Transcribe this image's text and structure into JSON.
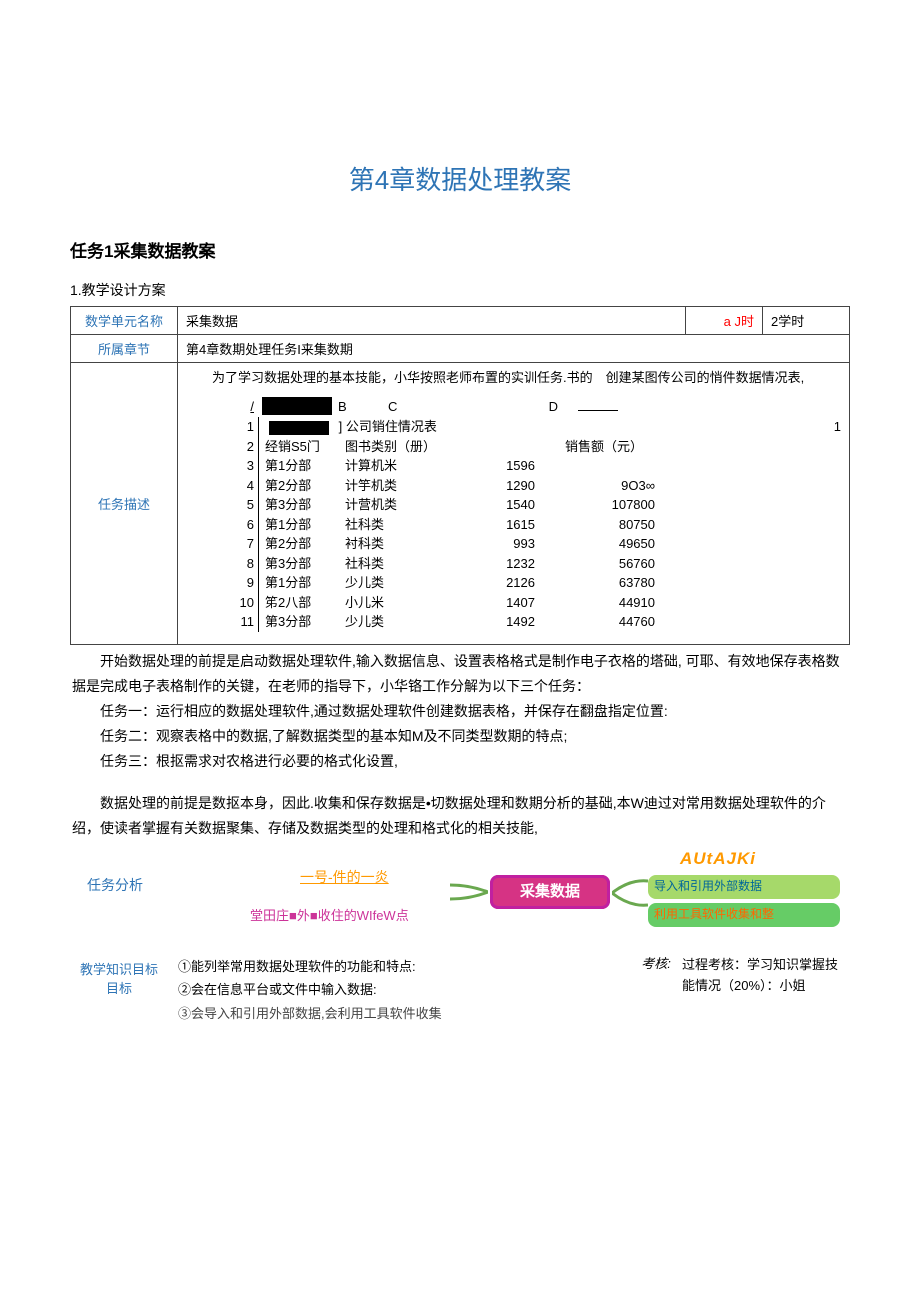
{
  "title": "第4章数据处理教案",
  "subtitle": "任务1采集数据教案",
  "section1_label": "1.教学设计方案",
  "row1": {
    "label": "数学单元名称",
    "value": "采集数据",
    "time_label": "a J时",
    "time_value": "2学时"
  },
  "row2": {
    "label": "所属章节",
    "value": "第4章数期处理任务I来集数期"
  },
  "task_desc_label": "任务描述",
  "desc_intro": "为了学习数据处理的基本技能，小华按照老师布置的实训任务.书的　创建某图传公司的悄件数据情况表,",
  "inner": {
    "col_letters": [
      "B",
      "C",
      "D"
    ],
    "slash": "/",
    "one": "1",
    "one_r": "1",
    "title_row": "] 公司销住情况表",
    "hdr_a": "经销S5门",
    "hdr_b": "图书类别（册）",
    "hdr_d": "销售额（元）",
    "rows": [
      {
        "n": "3",
        "a": "第1分部",
        "b": "计算机米",
        "c": "1596",
        "d": ""
      },
      {
        "n": "4",
        "a": "第2分部",
        "b": "计竽机类",
        "c": "1290",
        "d": "9O3∞"
      },
      {
        "n": "5",
        "a": "第3分部",
        "b": "计营机类",
        "c": "1540",
        "d": "107800"
      },
      {
        "n": "6",
        "a": "第1分部",
        "b": "社科类",
        "c": "1615",
        "d": "80750"
      },
      {
        "n": "7",
        "a": "第2分部",
        "b": "衬科类",
        "c": "993",
        "d": "49650"
      },
      {
        "n": "8",
        "a": "第3分部",
        "b": "社科类",
        "c": "1232",
        "d": "56760"
      },
      {
        "n": "9",
        "a": "第1分部",
        "b": "少儿类",
        "c": "2126",
        "d": "63780"
      },
      {
        "n": "10",
        "a": "笫2八部",
        "b": "小儿米",
        "c": "1407",
        "d": "44910"
      },
      {
        "n": "11",
        "a": "第3分部",
        "b": "少儿类",
        "c": "1492",
        "d": "44760"
      }
    ]
  },
  "paras": {
    "p1": "开始数据处理的前提是启动数据处理软件,输入数据信息、设置表格格式是制作电子衣格的塔础, 可耶、有效地保存表格数据是完成电子表格制作的关键，在老师的指导下，小华铬工作分解为以下三个任务：",
    "t1": "任务一：运行相应的数据处理软件,通过数据处理软件创建数据表格，并保存在翻盘指定位置:",
    "t2": "任务二：观察表格中的数据,了解数据类型的基本知M及不同类型数期的特点;",
    "t3": "任务三：根抠需求对农格进行必要的格式化设置,",
    "p2": "数据处理的前提是数抠本身，因此.收集和保存数据是•切数据处理和数期分析的基础,本W迪过对常用数据处理软件的介绍，使读者掌握有关数据聚集、存储及数据类型的处理和格式化的相关技能,"
  },
  "analysis_label": "任务分析",
  "mindmap": {
    "left1": "一号-件的一炎",
    "left2": "堂田庄■外■收住的WIfeW点",
    "center": "采集数据",
    "right0": "AUtAJKi",
    "right1": "导入和引用外部数据",
    "right2": "利用工具软件收集和整"
  },
  "goal": {
    "left": "教学知识目标目标",
    "items": [
      "①能列举常用数据处理软件的功能和特点:",
      "②会在信息平台或文件中输入数据:",
      "③会导入和引用外部数据,会利用工具软件收集"
    ],
    "k_label": "考核:",
    "right": "过程考核：学习知识掌握技能情况（20%）：小姐"
  },
  "colors": {
    "heading": "#2e74b5",
    "red": "#ff0000",
    "orange": "#ff9900",
    "magenta": "#cc3399",
    "pink_box": "#d63384",
    "green1": "#a6d96a",
    "green2": "#66cc66"
  }
}
